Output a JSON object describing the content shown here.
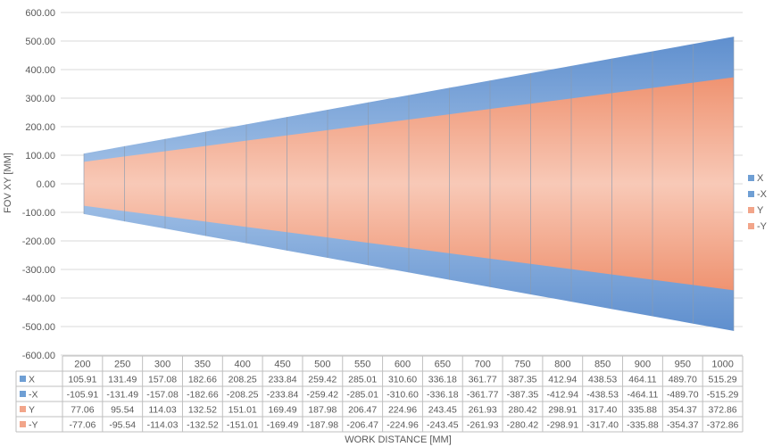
{
  "chart_data": {
    "type": "area",
    "xlabel": "WORK DISTANCE [MM]",
    "ylabel": "FOV XY [MM]",
    "ylim": [
      -600,
      600
    ],
    "y_ticks": [
      "600.00",
      "500.00",
      "400.00",
      "300.00",
      "200.00",
      "100.00",
      "0.00",
      "-100.00",
      "-200.00",
      "-300.00",
      "-400.00",
      "-500.00",
      "-600.00"
    ],
    "grid": "horizontal",
    "legend_position": "right",
    "categories": [
      "200",
      "250",
      "300",
      "350",
      "400",
      "450",
      "500",
      "550",
      "600",
      "650",
      "700",
      "750",
      "800",
      "850",
      "900",
      "950",
      "1000"
    ],
    "series": [
      {
        "name": "X",
        "color": "#6f9fd4",
        "values": [
          105.91,
          131.49,
          157.08,
          182.66,
          208.25,
          233.84,
          259.42,
          285.01,
          310.6,
          336.18,
          361.77,
          387.35,
          412.94,
          438.53,
          464.11,
          489.7,
          515.29
        ],
        "labels": [
          "105.91",
          "131.49",
          "157.08",
          "182.66",
          "208.25",
          "233.84",
          "259.42",
          "285.01",
          "310.60",
          "336.18",
          "361.77",
          "387.35",
          "412.94",
          "438.53",
          "464.11",
          "489.70",
          "515.29"
        ]
      },
      {
        "name": "-X",
        "color": "#6f9fd4",
        "values": [
          -105.91,
          -131.49,
          -157.08,
          -182.66,
          -208.25,
          -233.84,
          -259.42,
          -285.01,
          -310.6,
          -336.18,
          -361.77,
          -387.35,
          -412.94,
          -438.53,
          -464.11,
          -489.7,
          -515.29
        ],
        "labels": [
          "-105.91",
          "-131.49",
          "-157.08",
          "-182.66",
          "-208.25",
          "-233.84",
          "-259.42",
          "-285.01",
          "-310.60",
          "-336.18",
          "-361.77",
          "-387.35",
          "-412.94",
          "-438.53",
          "-464.11",
          "-489.70",
          "-515.29"
        ]
      },
      {
        "name": "Y",
        "color": "#f2a58a",
        "values": [
          77.06,
          95.54,
          114.03,
          132.52,
          151.01,
          169.49,
          187.98,
          206.47,
          224.96,
          243.45,
          261.93,
          280.42,
          298.91,
          317.4,
          335.88,
          354.37,
          372.86
        ],
        "labels": [
          "77.06",
          "95.54",
          "114.03",
          "132.52",
          "151.01",
          "169.49",
          "187.98",
          "206.47",
          "224.96",
          "243.45",
          "261.93",
          "280.42",
          "298.91",
          "317.40",
          "335.88",
          "354.37",
          "372.86"
        ]
      },
      {
        "name": "-Y",
        "color": "#f2a58a",
        "values": [
          -77.06,
          -95.54,
          -114.03,
          -132.52,
          -151.01,
          -169.49,
          -187.98,
          -206.47,
          -224.96,
          -243.45,
          -261.93,
          -280.42,
          -298.91,
          -317.4,
          -335.88,
          -354.37,
          -372.86
        ],
        "labels": [
          "-77.06",
          "-95.54",
          "-114.03",
          "-132.52",
          "-151.01",
          "-169.49",
          "-187.98",
          "-206.47",
          "-224.96",
          "-243.45",
          "-261.93",
          "-280.42",
          "-298.91",
          "-317.40",
          "-335.88",
          "-354.37",
          "-372.86"
        ]
      }
    ]
  }
}
